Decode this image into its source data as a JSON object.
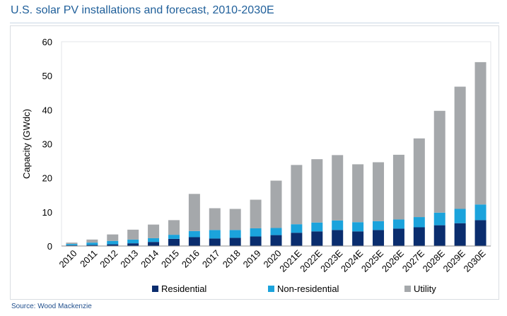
{
  "header": {
    "title": "U.S. solar PV installations and forecast, 2010-2030E"
  },
  "footer": {
    "source": "Source: Wood Mackenzie"
  },
  "chart_data": {
    "type": "bar",
    "stacked": true,
    "title": "",
    "xlabel": "",
    "ylabel": "Capacity (GWdc)",
    "ylim": [
      0,
      60
    ],
    "yticks": [
      0,
      10,
      20,
      30,
      40,
      50,
      60
    ],
    "grid": false,
    "legend": "bottom",
    "categories": [
      "2010",
      "2011",
      "2012",
      "2013",
      "2014",
      "2015",
      "2016",
      "2017",
      "2018",
      "2019",
      "2020",
      "2021E",
      "2022E",
      "2023E",
      "2024E",
      "2025E",
      "2026E",
      "2027E",
      "2028E",
      "2029E",
      "2030E"
    ],
    "series": [
      {
        "name": "Residential",
        "color": "#0a2d6e",
        "values": [
          0.2,
          0.3,
          0.5,
          0.8,
          1.2,
          2.1,
          2.6,
          2.2,
          2.4,
          2.8,
          3.2,
          3.9,
          4.3,
          4.7,
          4.3,
          4.7,
          5.1,
          5.5,
          6.1,
          6.7,
          7.6
        ]
      },
      {
        "name": "Non-residential",
        "color": "#1ba3dc",
        "values": [
          0.4,
          0.7,
          1.0,
          1.1,
          1.1,
          1.2,
          1.8,
          2.5,
          2.3,
          2.4,
          2.1,
          2.5,
          2.6,
          2.8,
          2.7,
          2.6,
          2.7,
          3.0,
          3.7,
          4.2,
          4.6
        ]
      },
      {
        "name": "Utility",
        "color": "#a5a8ab",
        "values": [
          0.4,
          0.9,
          1.9,
          2.9,
          4.0,
          4.3,
          10.9,
          6.4,
          6.2,
          8.4,
          13.9,
          17.4,
          18.6,
          19.2,
          17.0,
          17.3,
          19.0,
          23.1,
          29.9,
          35.9,
          41.8
        ]
      }
    ]
  }
}
